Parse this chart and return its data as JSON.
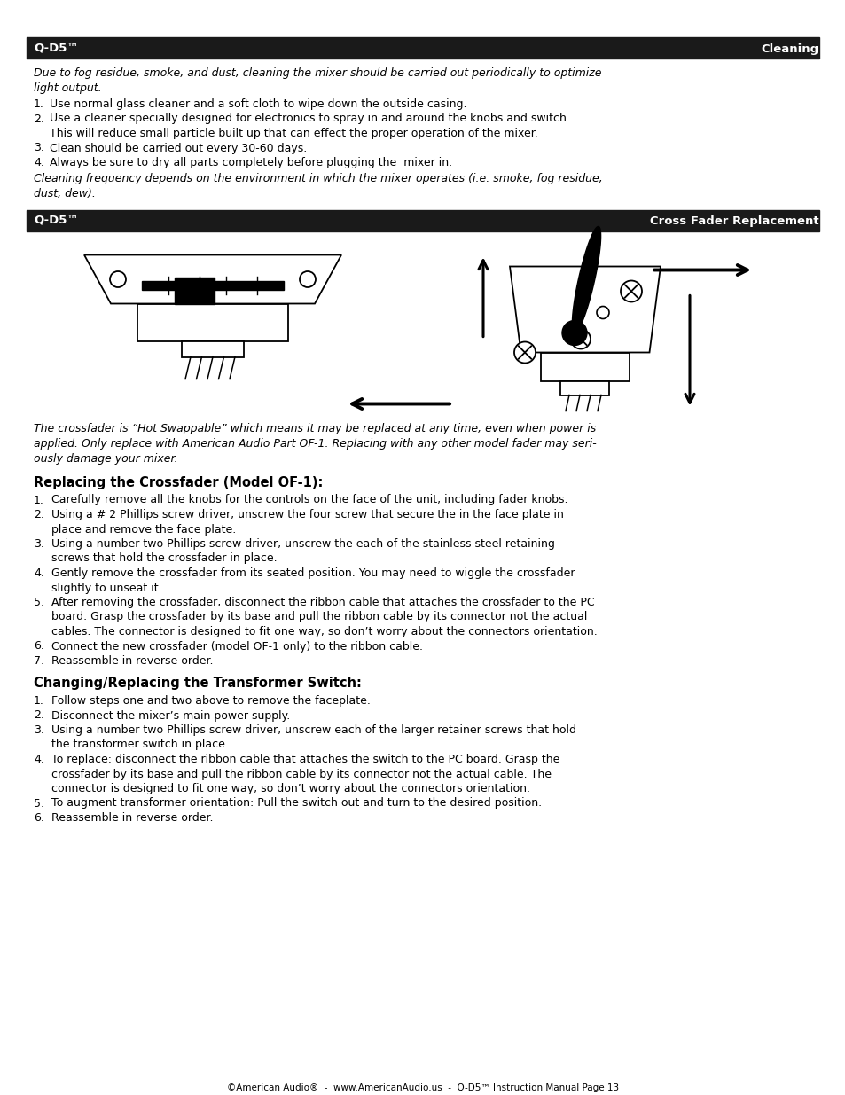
{
  "page_bg": "#ffffff",
  "header1_bg": "#1a1a1a",
  "header1_left": "Q-D5™",
  "header1_right": "Cleaning",
  "header2_bg": "#1a1a1a",
  "header2_left": "Q-D5™",
  "header2_right": "Cross Fader Replacement",
  "cleaning_italic": "Due to fog residue, smoke, and dust, cleaning the mixer should be carried out periodically to optimize\nlight output.",
  "cleaning_items": [
    "Use normal glass cleaner and a soft cloth to wipe down the outside casing.",
    "Use a cleaner specially designed for electronics to spray in and around the knobs and switch.\n    This will reduce small particle built up that can effect the proper operation of the mixer.",
    "Clean should be carried out every 30-60 days.",
    "Always be sure to dry all parts completely before plugging the  mixer in."
  ],
  "cleaning_footer_italic": "Cleaning frequency depends on the environment in which the mixer operates (i.e. smoke, fog residue,\ndust, dew).",
  "crossfader_italic": "The crossfader is “Hot Swappable” which means it may be replaced at any time, even when power is\napplied. Only replace with American Audio Part OF-1. Replacing with any other model fader may seri-\nously damage your mixer.",
  "section1_title": "Replacing the Crossfader (Model OF-1):",
  "section1_items": [
    "Carefully remove all the knobs for the controls on the face of the unit, including fader knobs.",
    "Using a # 2 Phillips screw driver, unscrew the four screw that secure the in the face plate in\n    place and remove the face plate.",
    "Using a number two Phillips screw driver, unscrew the each of the stainless steel retaining\n    screws that hold the crossfader in place.",
    "Gently remove the crossfader from its seated position. You may need to wiggle the crossfader\n    slightly to unseat it.",
    "After removing the crossfader, disconnect the ribbon cable that attaches the crossfader to the PC\n    board. Grasp the crossfader by its base and pull the ribbon cable by its connector not the actual\n    cables. The connector is designed to fit one way, so don’t worry about the connectors orientation.",
    "Connect the new crossfader (model OF-1 only) to the ribbon cable.",
    "Reassemble in reverse order."
  ],
  "section2_title": "Changing/Replacing the Transformer Switch:",
  "section2_items": [
    "Follow steps one and two above to remove the faceplate.",
    "Disconnect the mixer’s main power supply.",
    "Using a number two Phillips screw driver, unscrew each of the larger retainer screws that hold\n    the transformer switch in place.",
    "To replace: disconnect the ribbon cable that attaches the switch to the PC board. Grasp the\n    crossfader by its base and pull the ribbon cable by its connector not the actual cable. The\n    connector is designed to fit one way, so don’t worry about the connectors orientation.",
    "To augment transformer orientation: Pull the switch out and turn to the desired position.",
    "Reassemble in reverse order."
  ],
  "footer": "©American Audio®  -  www.AmericanAudio.us  -  Q-D5™ Instruction Manual Page 13"
}
